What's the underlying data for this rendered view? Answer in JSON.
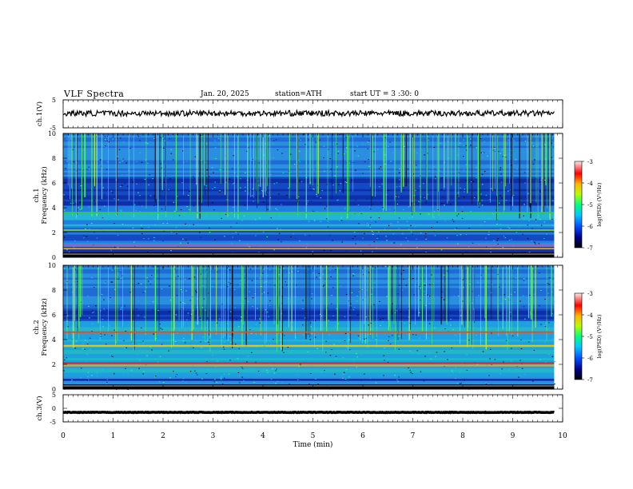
{
  "header": {
    "title": "VLF  Spectra",
    "date": "Jan. 20, 2025",
    "station": "station=ATH",
    "start": "start  UT  =   3  :30: 0"
  },
  "chart_data": [
    {
      "type": "line",
      "panel": "ch1-waveform",
      "ylabel": "ch.1(V)",
      "ylim": [
        -5,
        5
      ],
      "yticks": [
        "5",
        "-5"
      ],
      "xlim": [
        0,
        10
      ],
      "series": [
        {
          "color": "#000000",
          "level": 0.2,
          "noise": 1.0
        }
      ]
    },
    {
      "type": "heatmap",
      "panel": "ch1-spectrogram",
      "ylabel": "ch.1\nFrequency (kHz)",
      "ylabel_top": "ch.1",
      "ylabel_bottom": "Frequency  (kHz)",
      "ylim": [
        0,
        10
      ],
      "yticks": [
        "0",
        "2",
        "4",
        "6",
        "8",
        "10"
      ],
      "xlim": [
        0,
        10
      ],
      "time_range_min": 9.83,
      "bands_khz": [
        {
          "f": 3.6,
          "color": "#2ecc40"
        },
        {
          "f": 2.2,
          "color": "#7fdb2a"
        },
        {
          "f": 0.95,
          "color": "#d24aa8"
        },
        {
          "f": 0.7,
          "color": "#ff9f1a"
        }
      ],
      "colorbar": {
        "label": "log(PSD) (V²/Hz)",
        "ticks": [
          "-3",
          "-4",
          "-5",
          "-6",
          "-7"
        ],
        "range": [
          -7,
          -3
        ]
      }
    },
    {
      "type": "heatmap",
      "panel": "ch2-spectrogram",
      "ylabel": "ch.2\nFrequency (kHz)",
      "ylabel_top": "ch.2",
      "ylabel_bottom": "Frequency  (kHz)",
      "ylim": [
        0,
        10
      ],
      "yticks": [
        "0",
        "2",
        "4",
        "6",
        "8",
        "10"
      ],
      "xlim": [
        0,
        10
      ],
      "time_range_min": 9.83,
      "bands_khz": [
        {
          "f": 4.6,
          "color": "#ff3b1f"
        },
        {
          "f": 3.5,
          "color": "#ffcc00"
        },
        {
          "f": 2.1,
          "color": "#e8190f"
        },
        {
          "f": 1.9,
          "color": "#ff9f1a"
        }
      ],
      "colorbar": {
        "label": "log(PSD) (V²/Hz)",
        "ticks": [
          "-3",
          "-4",
          "-5",
          "-6",
          "-7"
        ],
        "range": [
          -7,
          -3
        ]
      }
    },
    {
      "type": "line",
      "panel": "ch3-waveform",
      "ylabel": "ch.3(V)",
      "ylim": [
        -5,
        5
      ],
      "yticks": [
        "5",
        "0",
        "-5"
      ],
      "xlim": [
        0,
        10
      ],
      "series": [
        {
          "color": "#000000",
          "level": -1.5,
          "noise": 0.1
        }
      ]
    }
  ],
  "xaxis": {
    "label": "Time  (min)",
    "ticks": [
      "0",
      "1",
      "2",
      "3",
      "4",
      "5",
      "6",
      "7",
      "8",
      "9",
      "10"
    ]
  }
}
